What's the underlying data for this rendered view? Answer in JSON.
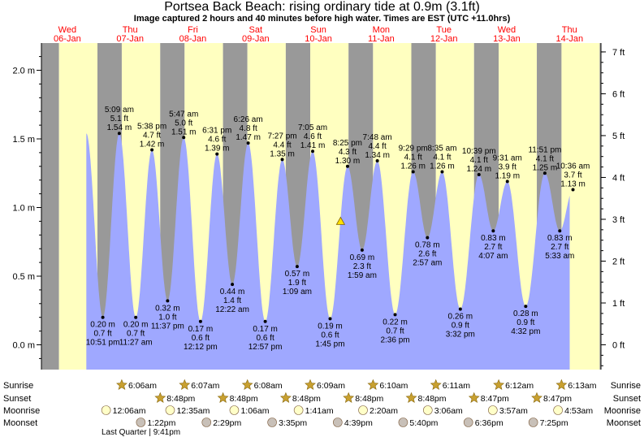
{
  "header": {
    "title": "Portsea Back Beach: rising  ordinary tide at 0.9m (3.1ft)",
    "subtitle": "Image captured 2 hours and 40 minutes before high water. Times are EST (UTC +11.0hrs)"
  },
  "days": [
    {
      "dow": "Wed",
      "date": "06-Jan"
    },
    {
      "dow": "Thu",
      "date": "07-Jan"
    },
    {
      "dow": "Fri",
      "date": "08-Jan"
    },
    {
      "dow": "Sat",
      "date": "09-Jan"
    },
    {
      "dow": "Sun",
      "date": "10-Jan"
    },
    {
      "dow": "Mon",
      "date": "11-Jan"
    },
    {
      "dow": "Tue",
      "date": "12-Jan"
    },
    {
      "dow": "Wed",
      "date": "13-Jan"
    },
    {
      "dow": "Thu",
      "date": "14-Jan"
    }
  ],
  "row_labels": {
    "sunrise": "Sunrise",
    "sunset": "Sunset",
    "moonrise": "Moonrise",
    "moonset": "Moonset"
  },
  "moon_phase_note": "Last Quarter | 9:41pm",
  "colors": {
    "water": "#9fa8ff",
    "day": "#ffffc0",
    "night": "#999999",
    "text": "#000000",
    "date": "#ff0000",
    "sun_icon": "#c8a030",
    "moonrise_icon": "#ffffc8",
    "moonset_icon": "#c8c0b8"
  },
  "chart_data": {
    "type": "area",
    "title": "Portsea Back Beach: rising  ordinary tide at 0.9m (3.1ft)",
    "y_left_unit": "m",
    "y_right_unit": "ft",
    "ylim_m": [
      -0.2,
      2.15
    ],
    "y_left_ticks": [
      {
        "v": 0.0,
        "label": "0.0 m"
      },
      {
        "v": 0.5,
        "label": "0.5 m"
      },
      {
        "v": 1.0,
        "label": "1.0 m"
      },
      {
        "v": 1.5,
        "label": "1.5 m"
      },
      {
        "v": 2.0,
        "label": "2.0 m"
      }
    ],
    "y_right_ticks": [
      {
        "v": 0,
        "label": "0 ft"
      },
      {
        "v": 1,
        "label": "1 ft"
      },
      {
        "v": 2,
        "label": "2 ft"
      },
      {
        "v": 3,
        "label": "3 ft"
      },
      {
        "v": 4,
        "label": "4 ft"
      },
      {
        "v": 5,
        "label": "5 ft"
      },
      {
        "v": 6,
        "label": "6 ft"
      },
      {
        "v": 7,
        "label": "7 ft"
      }
    ],
    "current_level_m": 0.9,
    "extremes": [
      {
        "type": "low",
        "day": 0,
        "time": "10:51 pm",
        "m": 0.2,
        "ft": "0.7 ft",
        "m_label": "0.20 m"
      },
      {
        "type": "high",
        "day": 1,
        "time": "5:09 am",
        "m": 1.54,
        "ft": "5.1 ft",
        "m_label": "1.54 m"
      },
      {
        "type": "low",
        "day": 1,
        "time": "11:27 am",
        "m": 0.2,
        "ft": "0.7 ft",
        "m_label": "0.20 m"
      },
      {
        "type": "high",
        "day": 1,
        "time": "5:38 pm",
        "m": 1.42,
        "ft": "4.7 ft",
        "m_label": "1.42 m"
      },
      {
        "type": "low",
        "day": 1,
        "time": "11:37 pm",
        "m": 0.32,
        "ft": "1.0 ft",
        "m_label": "0.32 m"
      },
      {
        "type": "high",
        "day": 2,
        "time": "5:47 am",
        "m": 1.51,
        "ft": "5.0 ft",
        "m_label": "1.51 m"
      },
      {
        "type": "low",
        "day": 2,
        "time": "12:12 pm",
        "m": 0.17,
        "ft": "0.6 ft",
        "m_label": "0.17 m"
      },
      {
        "type": "high",
        "day": 2,
        "time": "6:31 pm",
        "m": 1.39,
        "ft": "4.6 ft",
        "m_label": "1.39 m"
      },
      {
        "type": "low",
        "day": 3,
        "time": "12:22 am",
        "m": 0.44,
        "ft": "1.4 ft",
        "m_label": "0.44 m"
      },
      {
        "type": "high",
        "day": 3,
        "time": "6:26 am",
        "m": 1.47,
        "ft": "4.8 ft",
        "m_label": "1.47 m"
      },
      {
        "type": "low",
        "day": 3,
        "time": "12:57 pm",
        "m": 0.17,
        "ft": "0.6 ft",
        "m_label": "0.17 m"
      },
      {
        "type": "high",
        "day": 3,
        "time": "7:27 pm",
        "m": 1.35,
        "ft": "4.4 ft",
        "m_label": "1.35 m"
      },
      {
        "type": "low",
        "day": 4,
        "time": "1:09 am",
        "m": 0.57,
        "ft": "1.9 ft",
        "m_label": "0.57 m"
      },
      {
        "type": "high",
        "day": 4,
        "time": "7:05 am",
        "m": 1.41,
        "ft": "4.6 ft",
        "m_label": "1.41 m"
      },
      {
        "type": "low",
        "day": 4,
        "time": "1:45 pm",
        "m": 0.19,
        "ft": "0.6 ft",
        "m_label": "0.19 m"
      },
      {
        "type": "high",
        "day": 4,
        "time": "8:25 pm",
        "m": 1.3,
        "ft": "4.3 ft",
        "m_label": "1.30 m"
      },
      {
        "type": "low",
        "day": 5,
        "time": "1:59 am",
        "m": 0.69,
        "ft": "2.3 ft",
        "m_label": "0.69 m"
      },
      {
        "type": "high",
        "day": 5,
        "time": "7:48 am",
        "m": 1.34,
        "ft": "4.4 ft",
        "m_label": "1.34 m"
      },
      {
        "type": "low",
        "day": 5,
        "time": "2:36 pm",
        "m": 0.22,
        "ft": "0.7 ft",
        "m_label": "0.22 m"
      },
      {
        "type": "high",
        "day": 5,
        "time": "9:29 pm",
        "m": 1.26,
        "ft": "4.1 ft",
        "m_label": "1.26 m"
      },
      {
        "type": "low",
        "day": 6,
        "time": "2:57 am",
        "m": 0.78,
        "ft": "2.6 ft",
        "m_label": "0.78 m"
      },
      {
        "type": "high",
        "day": 6,
        "time": "8:35 am",
        "m": 1.26,
        "ft": "4.1 ft",
        "m_label": "1.26 m"
      },
      {
        "type": "low",
        "day": 6,
        "time": "3:32 pm",
        "m": 0.26,
        "ft": "0.9 ft",
        "m_label": "0.26 m"
      },
      {
        "type": "high",
        "day": 6,
        "time": "10:39 pm",
        "m": 1.24,
        "ft": "4.1 ft",
        "m_label": "1.24 m"
      },
      {
        "type": "low",
        "day": 7,
        "time": "4:07 am",
        "m": 0.83,
        "ft": "2.7 ft",
        "m_label": "0.83 m"
      },
      {
        "type": "high",
        "day": 7,
        "time": "9:31 am",
        "m": 1.19,
        "ft": "3.9 ft",
        "m_label": "1.19 m"
      },
      {
        "type": "low",
        "day": 7,
        "time": "4:32 pm",
        "m": 0.28,
        "ft": "0.9 ft",
        "m_label": "0.28 m"
      },
      {
        "type": "high",
        "day": 7,
        "time": "11:51 pm",
        "m": 1.25,
        "ft": "4.1 ft",
        "m_label": "1.25 m"
      },
      {
        "type": "low",
        "day": 8,
        "time": "5:33 am",
        "m": 0.83,
        "ft": "2.7 ft",
        "m_label": "0.83 m"
      },
      {
        "type": "high",
        "day": 8,
        "time": "10:36 am",
        "m": 1.13,
        "ft": "3.7 ft",
        "m_label": "1.13 m"
      }
    ],
    "sunrise": [
      {
        "day": 1,
        "time": "6:06am"
      },
      {
        "day": 2,
        "time": "6:07am"
      },
      {
        "day": 3,
        "time": "6:08am"
      },
      {
        "day": 4,
        "time": "6:09am"
      },
      {
        "day": 5,
        "time": "6:10am"
      },
      {
        "day": 6,
        "time": "6:11am"
      },
      {
        "day": 7,
        "time": "6:12am"
      },
      {
        "day": 8,
        "time": "6:13am"
      }
    ],
    "sunset": [
      {
        "day": 1,
        "time": "8:48pm"
      },
      {
        "day": 2,
        "time": "8:48pm"
      },
      {
        "day": 3,
        "time": "8:48pm"
      },
      {
        "day": 4,
        "time": "8:48pm"
      },
      {
        "day": 5,
        "time": "8:48pm"
      },
      {
        "day": 6,
        "time": "8:47pm"
      },
      {
        "day": 7,
        "time": "8:47pm"
      }
    ],
    "moonrise": [
      {
        "day": 1,
        "time": "12:06am"
      },
      {
        "day": 2,
        "time": "12:35am"
      },
      {
        "day": 3,
        "time": "1:06am"
      },
      {
        "day": 4,
        "time": "1:41am"
      },
      {
        "day": 5,
        "time": "2:20am"
      },
      {
        "day": 6,
        "time": "3:06am"
      },
      {
        "day": 7,
        "time": "3:57am"
      },
      {
        "day": 8,
        "time": "4:53am"
      }
    ],
    "moonset": [
      {
        "day": 1,
        "time": "1:22pm"
      },
      {
        "day": 2,
        "time": "2:29pm"
      },
      {
        "day": 3,
        "time": "3:35pm"
      },
      {
        "day": 4,
        "time": "4:39pm"
      },
      {
        "day": 5,
        "time": "5:40pm"
      },
      {
        "day": 6,
        "time": "6:36pm"
      },
      {
        "day": 7,
        "time": "7:25pm"
      }
    ],
    "current_time": {
      "day": 4,
      "time": "5:45 pm"
    }
  }
}
